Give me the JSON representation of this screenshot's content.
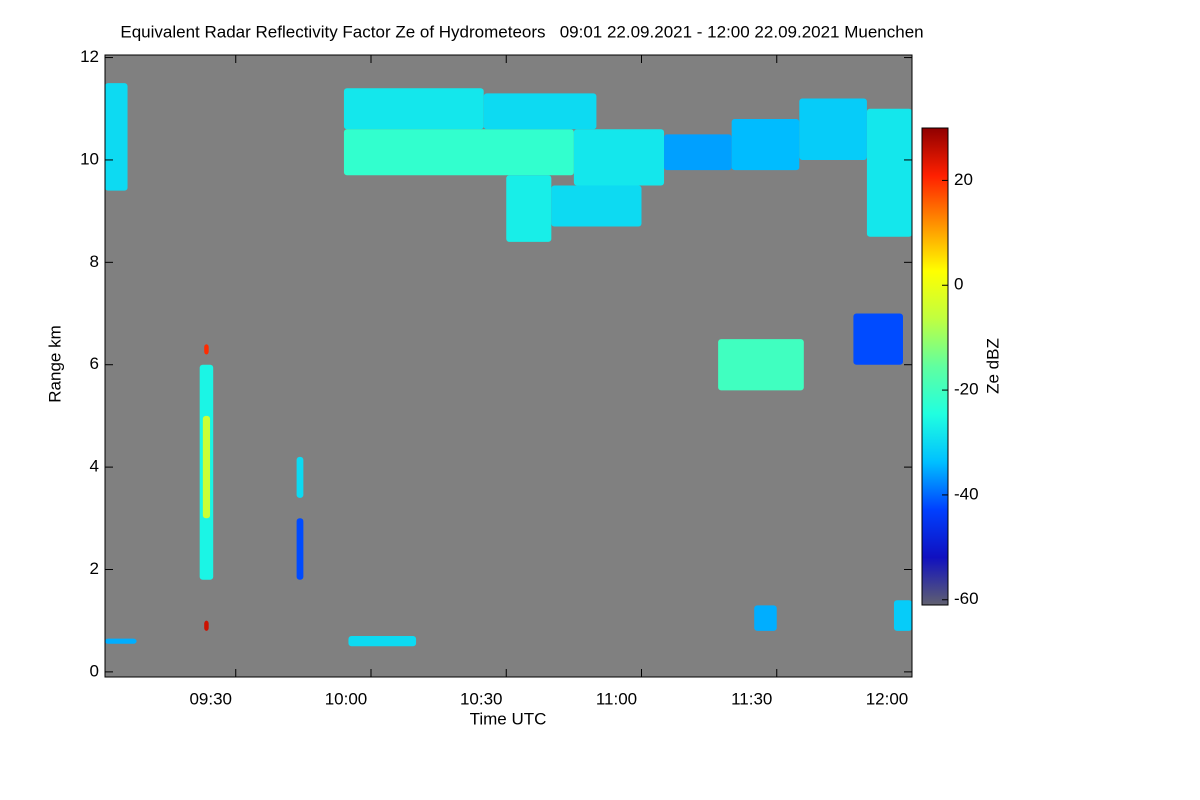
{
  "chart_data": {
    "type": "heatmap",
    "title": "Equivalent Radar Reflectivity Factor Ze of Hydrometeors   09:01 22.09.2021 - 12:00 22.09.2021 Muenchen",
    "x_label": "Time UTC",
    "y_label": "Range km",
    "colorbar_label": "Ze dBZ",
    "xlim": [
      541,
      720
    ],
    "xticks": [
      {
        "value": 570,
        "label": "09:30"
      },
      {
        "value": 600,
        "label": "10:00"
      },
      {
        "value": 630,
        "label": "10:30"
      },
      {
        "value": 660,
        "label": "11:00"
      },
      {
        "value": 690,
        "label": "11:30"
      },
      {
        "value": 720,
        "label": "12:00"
      }
    ],
    "ylim": [
      -0.1,
      12.05
    ],
    "yticks": [
      0,
      2,
      4,
      6,
      8,
      10,
      12
    ],
    "clim": [
      -61,
      30
    ],
    "cticks": [
      -60,
      -40,
      -20,
      0,
      20
    ],
    "background": "#808080",
    "colormap": [
      "#606070",
      "#1010c0",
      "#0040ff",
      "#00c0ff",
      "#20ffe0",
      "#60ffa0",
      "#c0ff40",
      "#ffff00",
      "#ff9000",
      "#ff2000",
      "#900000"
    ],
    "cells": [
      {
        "t0": 541,
        "t1": 546,
        "h0": 9.4,
        "h1": 11.5,
        "z": -30
      },
      {
        "t0": 594,
        "t1": 625,
        "h0": 10.6,
        "h1": 11.4,
        "z": -28
      },
      {
        "t0": 594,
        "t1": 645,
        "h0": 9.7,
        "h1": 10.6,
        "z": -22
      },
      {
        "t0": 625,
        "t1": 650,
        "h0": 10.6,
        "h1": 11.3,
        "z": -30
      },
      {
        "t0": 645,
        "t1": 665,
        "h0": 9.5,
        "h1": 10.6,
        "z": -28
      },
      {
        "t0": 630,
        "t1": 640,
        "h0": 8.4,
        "h1": 9.7,
        "z": -27
      },
      {
        "t0": 640,
        "t1": 660,
        "h0": 8.7,
        "h1": 9.5,
        "z": -30
      },
      {
        "t0": 665,
        "t1": 680,
        "h0": 9.8,
        "h1": 10.5,
        "z": -36
      },
      {
        "t0": 680,
        "t1": 695,
        "h0": 9.8,
        "h1": 10.8,
        "z": -34
      },
      {
        "t0": 695,
        "t1": 710,
        "h0": 10.0,
        "h1": 11.2,
        "z": -32
      },
      {
        "t0": 710,
        "t1": 720,
        "h0": 8.5,
        "h1": 11.0,
        "z": -28
      },
      {
        "t0": 562,
        "t1": 565,
        "h0": 1.8,
        "h1": 6.0,
        "z": -26
      },
      {
        "t0": 562.7,
        "t1": 564.3,
        "h0": 3.0,
        "h1": 5.0,
        "z": -5
      },
      {
        "t0": 563,
        "t1": 564,
        "h0": 6.2,
        "h1": 6.4,
        "z": 20
      },
      {
        "t0": 563,
        "t1": 564,
        "h0": 0.8,
        "h1": 1.0,
        "z": 25
      },
      {
        "t0": 583.5,
        "t1": 585,
        "h0": 3.4,
        "h1": 4.2,
        "z": -30
      },
      {
        "t0": 583.5,
        "t1": 585,
        "h0": 1.8,
        "h1": 3.0,
        "z": -42
      },
      {
        "t0": 677,
        "t1": 696,
        "h0": 5.5,
        "h1": 6.5,
        "z": -20
      },
      {
        "t0": 707,
        "t1": 718,
        "h0": 6.0,
        "h1": 7.0,
        "z": -42
      },
      {
        "t0": 595,
        "t1": 610,
        "h0": 0.5,
        "h1": 0.7,
        "z": -30
      },
      {
        "t0": 541,
        "t1": 548,
        "h0": 0.55,
        "h1": 0.65,
        "z": -35
      },
      {
        "t0": 685,
        "t1": 690,
        "h0": 0.8,
        "h1": 1.3,
        "z": -35
      },
      {
        "t0": 716,
        "t1": 720,
        "h0": 0.8,
        "h1": 1.4,
        "z": -32
      }
    ]
  }
}
